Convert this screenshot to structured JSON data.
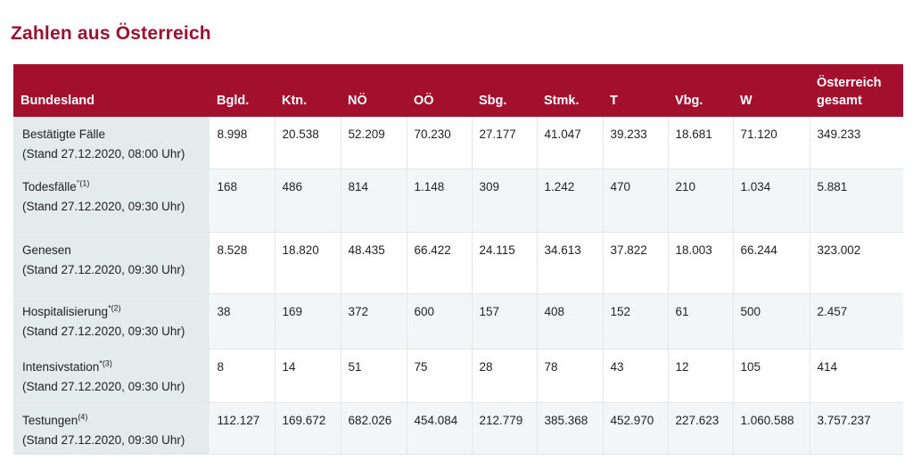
{
  "title": "Zahlen aus Österreich",
  "table": {
    "headers": [
      "Bundesland",
      "Bgld.",
      "Ktn.",
      "NÖ",
      "OÖ",
      "Sbg.",
      "Stmk.",
      "T",
      "Vbg.",
      "W",
      "Österreich gesamt"
    ],
    "header_last_line1": "Österreich",
    "header_last_line2": "gesamt",
    "rows": [
      {
        "label": "Bestätigte Fälle",
        "sup": "",
        "stand": "(Stand 27.12.2020, 08:00 Uhr)",
        "values": [
          "8.998",
          "20.538",
          "52.209",
          "70.230",
          "27.177",
          "41.047",
          "39.233",
          "18.681",
          "71.120",
          "349.233"
        ]
      },
      {
        "label": "Todesfälle",
        "sup": "°(1)",
        "stand": "(Stand 27.12.2020, 09:30 Uhr)",
        "values": [
          "168",
          "486",
          "814",
          "1.148",
          "309",
          "1.242",
          "470",
          "210",
          "1.034",
          "5.881"
        ]
      },
      {
        "label": "Genesen",
        "sup": "",
        "stand": "(Stand 27.12.2020, 09:30 Uhr)",
        "values": [
          "8.528",
          "18.820",
          "48.435",
          "66.422",
          "24.115",
          "34.613",
          "37.822",
          "18.003",
          "66.244",
          "323.002"
        ]
      },
      {
        "label": "Hospitalisierung",
        "sup": "*(2)",
        "stand": "(Stand 27.12.2020, 09:30 Uhr)",
        "values": [
          "38",
          "169",
          "372",
          "600",
          "157",
          "408",
          "152",
          "61",
          "500",
          "2.457"
        ]
      },
      {
        "label": "Intensivstation",
        "sup": "*(3)",
        "stand": "(Stand 27.12.2020, 09:30 Uhr)",
        "values": [
          "8",
          "14",
          "51",
          "75",
          "28",
          "78",
          "43",
          "12",
          "105",
          "414"
        ]
      },
      {
        "label": "Testungen",
        "sup": "(4)",
        "stand": "(Stand 27.12.2020, 09:30 Uhr)",
        "values": [
          "112.127",
          "169.672",
          "682.026",
          "454.084",
          "212.779",
          "385.368",
          "452.970",
          "227.623",
          "1.060.588",
          "3.757.237"
        ]
      }
    ]
  }
}
